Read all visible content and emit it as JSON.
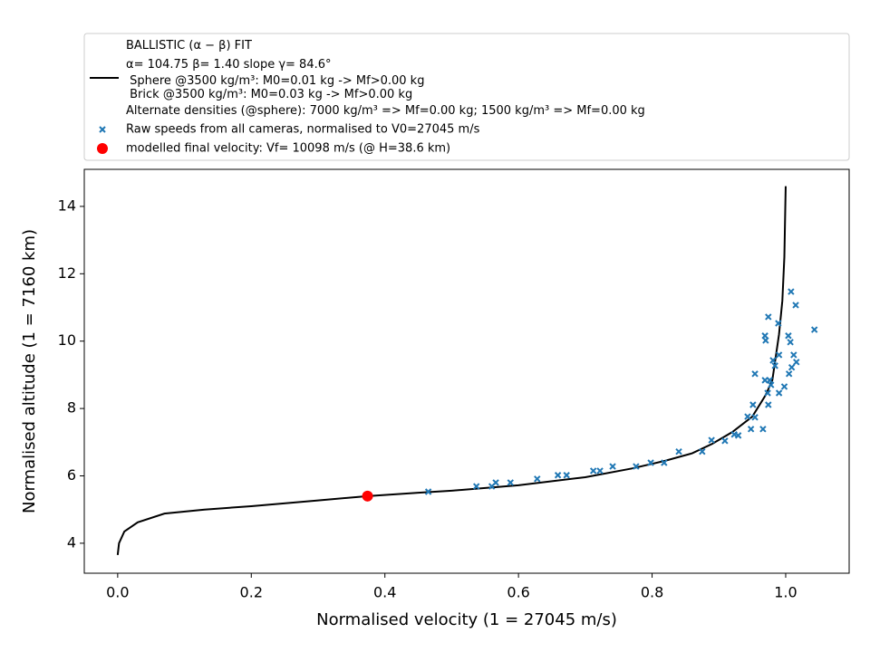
{
  "chart_data": {
    "type": "line",
    "xlabel": "Normalised velocity (1 = 27045 m/s)",
    "ylabel": "Normalised altitude (1 = 7160 km)",
    "xlim": [
      -0.05,
      1.095
    ],
    "ylim": [
      3.11,
      15.1
    ],
    "xticks": [
      {
        "value": 0,
        "label": "0.0"
      },
      0.2,
      0.4,
      0.6,
      0.8,
      {
        "value": 1,
        "label": "1.0"
      }
    ],
    "yticks": [
      4,
      6,
      8,
      10,
      12,
      14
    ],
    "series": [
      {
        "name": "BALLISTIC (α − β) FIT\nα= 104.75     β= 1.40     slope γ= 84.6°\n Sphere @3500 kg/m³: M0=0.01 kg -> Mf>0.00 kg\n Brick @3500 kg/m³: M0=0.03 kg -> Mf>0.00 kg\nAlternate densities (@sphere): 7000 kg/m³ => Mf=0.00 kg; 1500 kg/m³ => Mf=0.00 kg",
        "type": "line",
        "color": "#000000",
        "x": [
          0,
          0.002,
          0.01,
          0.03,
          0.07,
          0.13,
          0.2,
          0.3,
          0.374,
          0.45,
          0.5,
          0.6,
          0.7,
          0.77,
          0.82,
          0.86,
          0.89,
          0.92,
          0.95,
          0.97,
          0.98,
          0.99,
          0.995,
          0.998,
          1.0
        ],
        "values": [
          3.65,
          4.0,
          4.35,
          4.62,
          4.88,
          5.0,
          5.1,
          5.27,
          5.4,
          5.5,
          5.56,
          5.72,
          5.96,
          6.22,
          6.45,
          6.67,
          6.95,
          7.3,
          7.76,
          8.4,
          8.84,
          10.2,
          11.2,
          12.5,
          14.6
        ]
      },
      {
        "name": "Raw speeds from all cameras, normalised to V0=27045 m/s",
        "type": "scatter",
        "marker": "x",
        "color": "#1f77b4",
        "x": [
          0.465,
          0.537,
          0.56,
          0.566,
          0.588,
          0.628,
          0.659,
          0.672,
          0.712,
          0.722,
          0.741,
          0.776,
          0.798,
          0.818,
          0.84,
          0.875,
          0.889,
          0.909,
          0.923,
          0.929,
          0.943,
          0.948,
          0.954,
          0.951,
          0.954,
          0.966,
          0.969,
          0.973,
          0.974,
          0.976,
          0.969,
          0.97,
          0.974,
          0.978,
          0.981,
          0.984,
          0.989,
          0.99,
          0.99,
          0.998,
          1.004,
          1.007,
          1.005,
          1.009,
          1.008,
          1.012,
          1.016,
          1.015,
          1.043
        ],
        "values": [
          5.53,
          5.69,
          5.69,
          5.8,
          5.8,
          5.91,
          6.02,
          6.02,
          6.15,
          6.15,
          6.28,
          6.28,
          6.39,
          6.39,
          6.72,
          6.72,
          7.06,
          7.04,
          7.23,
          7.2,
          7.76,
          7.39,
          7.74,
          8.11,
          9.03,
          7.39,
          8.84,
          8.46,
          8.11,
          8.84,
          10.16,
          10.02,
          10.72,
          8.7,
          9.43,
          9.27,
          10.53,
          8.46,
          9.59,
          8.65,
          10.16,
          9.97,
          9.03,
          9.22,
          11.47,
          9.59,
          9.38,
          11.07,
          10.34
        ]
      },
      {
        "name": "modelled final velocity: Vf= 10098 m/s (@ H=38.6 km)",
        "type": "scatter",
        "marker": "o",
        "color": "#ff0000",
        "x": [
          0.374
        ],
        "values": [
          5.4
        ]
      }
    ]
  }
}
